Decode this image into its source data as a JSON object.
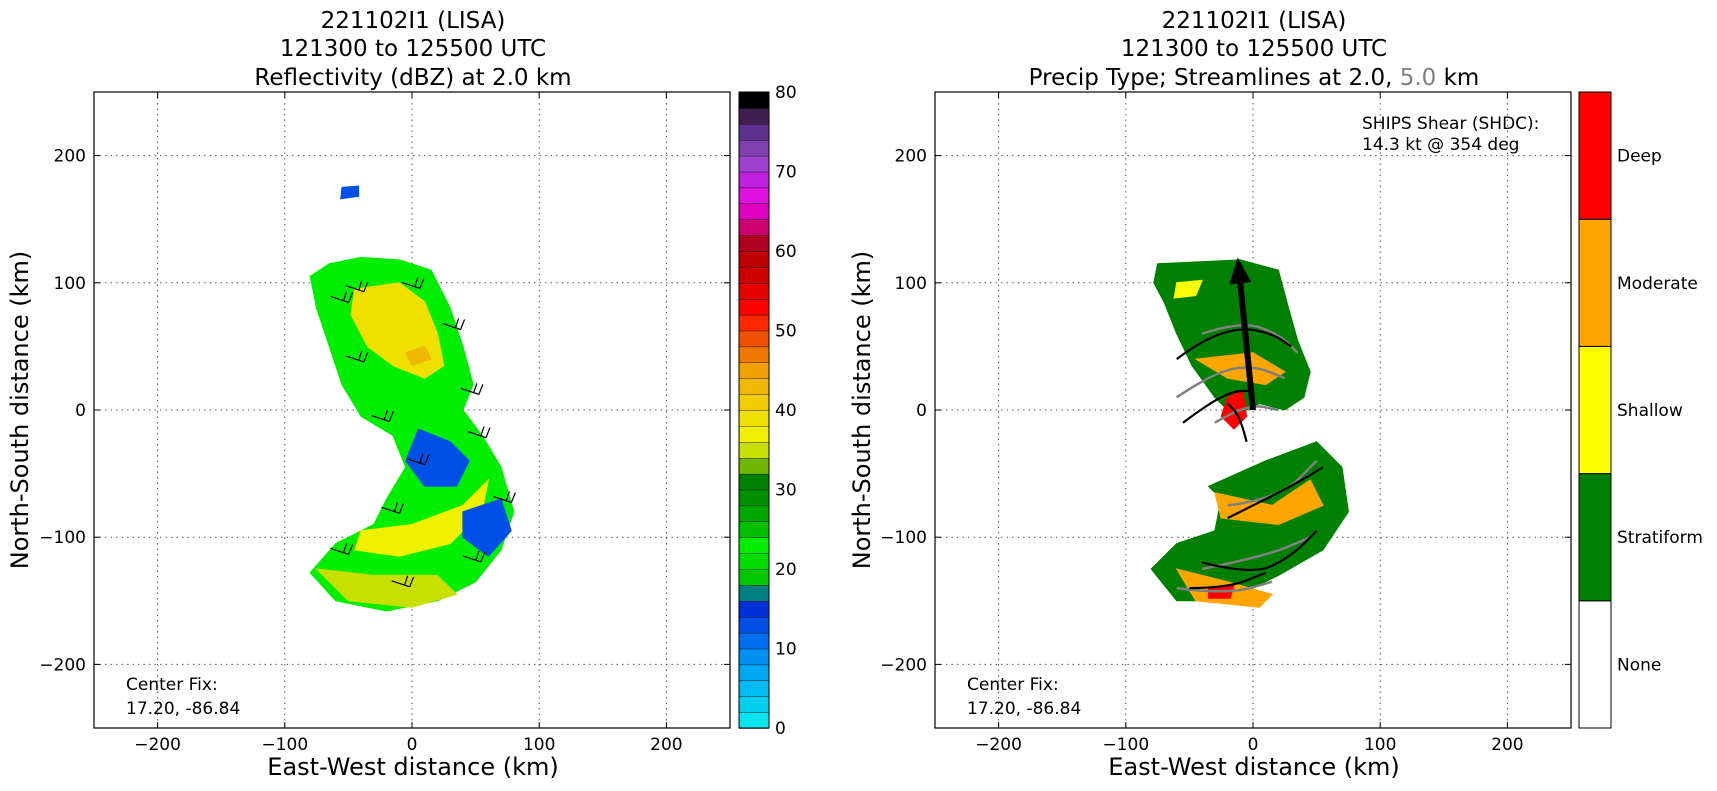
{
  "chart_data": [
    {
      "type": "heatmap",
      "title_lines": [
        "221102I1 (LISA)",
        "121300 to 125500 UTC",
        "Reflectivity (dBZ) at 2.0 km"
      ],
      "xlabel": "East-West distance (km)",
      "ylabel": "North-South distance (km)",
      "xlim": [
        -250,
        250
      ],
      "ylim": [
        -250,
        250
      ],
      "xticks": [
        -200,
        -100,
        0,
        100,
        200
      ],
      "yticks": [
        -200,
        -100,
        0,
        100,
        200
      ],
      "xtick_labels": [
        "−200",
        "−100",
        "0",
        "100",
        "200"
      ],
      "ytick_labels": [
        "−200",
        "−100",
        "0",
        "100",
        "200"
      ],
      "grid": true,
      "annotation_lines": [
        "Center Fix:",
        "17.20, -86.84"
      ],
      "colorbar": {
        "label": "dBZ",
        "vmin": 0,
        "vmax": 80,
        "ticks": [
          0,
          10,
          20,
          30,
          40,
          50,
          60,
          70,
          80
        ],
        "colors": [
          "#00e5ee",
          "#00d0f0",
          "#00bcf2",
          "#00a8f4",
          "#0090f2",
          "#0070f0",
          "#0050e8",
          "#0030d8",
          "#008080",
          "#00c800",
          "#00dd00",
          "#00ee00",
          "#00c000",
          "#00a800",
          "#009000",
          "#008000",
          "#70b800",
          "#c8e000",
          "#f0f000",
          "#f0e000",
          "#f0cc00",
          "#f0b800",
          "#f0a000",
          "#f07800",
          "#f05000",
          "#ff2800",
          "#ff0000",
          "#e80000",
          "#d00000",
          "#c00000",
          "#b00020",
          "#d00070",
          "#e000c0",
          "#e010e0",
          "#c020e0",
          "#a040d0",
          "#8040b0",
          "#603090",
          "#401e50",
          "#000000"
        ]
      },
      "wind_barbs": true,
      "region_outline": [
        [
          -65,
          115
        ],
        [
          -40,
          120
        ],
        [
          -10,
          118
        ],
        [
          15,
          110
        ],
        [
          30,
          80
        ],
        [
          40,
          50
        ],
        [
          48,
          20
        ],
        [
          40,
          0
        ],
        [
          55,
          -20
        ],
        [
          70,
          -45
        ],
        [
          80,
          -80
        ],
        [
          70,
          -110
        ],
        [
          50,
          -135
        ],
        [
          20,
          -150
        ],
        [
          -20,
          -158
        ],
        [
          -60,
          -150
        ],
        [
          -80,
          -128
        ],
        [
          -60,
          -105
        ],
        [
          -30,
          -90
        ],
        [
          -20,
          -70
        ],
        [
          -5,
          -45
        ],
        [
          -15,
          -20
        ],
        [
          -40,
          -5
        ],
        [
          -55,
          20
        ],
        [
          -65,
          50
        ],
        [
          -75,
          80
        ],
        [
          -80,
          105
        ]
      ],
      "intensity_zones": [
        {
          "dbz": 22,
          "points": [
            [
              -65,
              115
            ],
            [
              -40,
              120
            ],
            [
              -10,
              118
            ],
            [
              15,
              110
            ],
            [
              30,
              80
            ],
            [
              40,
              50
            ],
            [
              48,
              20
            ],
            [
              40,
              0
            ],
            [
              55,
              -20
            ],
            [
              70,
              -45
            ],
            [
              80,
              -80
            ],
            [
              70,
              -110
            ],
            [
              50,
              -135
            ],
            [
              20,
              -150
            ],
            [
              -20,
              -158
            ],
            [
              -60,
              -150
            ],
            [
              -80,
              -128
            ],
            [
              -60,
              -105
            ],
            [
              -30,
              -90
            ],
            [
              -20,
              -70
            ],
            [
              -5,
              -45
            ],
            [
              -15,
              -20
            ],
            [
              -40,
              -5
            ],
            [
              -55,
              20
            ],
            [
              -65,
              50
            ],
            [
              -75,
              80
            ],
            [
              -80,
              105
            ]
          ]
        },
        {
          "dbz": 38,
          "points": [
            [
              -45,
              95
            ],
            [
              -10,
              100
            ],
            [
              10,
              85
            ],
            [
              20,
              60
            ],
            [
              25,
              35
            ],
            [
              10,
              25
            ],
            [
              -15,
              35
            ],
            [
              -35,
              50
            ],
            [
              -48,
              75
            ]
          ]
        },
        {
          "dbz": 36,
          "points": [
            [
              -40,
              -95
            ],
            [
              0,
              -90
            ],
            [
              40,
              -75
            ],
            [
              60,
              -55
            ],
            [
              55,
              -80
            ],
            [
              30,
              -105
            ],
            [
              -10,
              -115
            ],
            [
              -45,
              -110
            ]
          ]
        },
        {
          "dbz": 34,
          "points": [
            [
              -75,
              -125
            ],
            [
              -30,
              -130
            ],
            [
              20,
              -130
            ],
            [
              35,
              -145
            ],
            [
              0,
              -155
            ],
            [
              -50,
              -150
            ]
          ]
        },
        {
          "dbz": 12,
          "points": [
            [
              5,
              -15
            ],
            [
              30,
              -25
            ],
            [
              45,
              -40
            ],
            [
              35,
              -60
            ],
            [
              10,
              -60
            ],
            [
              -5,
              -40
            ]
          ]
        },
        {
          "dbz": 12,
          "points": [
            [
              40,
              -80
            ],
            [
              70,
              -70
            ],
            [
              78,
              -95
            ],
            [
              60,
              -115
            ],
            [
              40,
              -100
            ]
          ]
        },
        {
          "dbz": 12,
          "points": [
            [
              -55,
              175
            ],
            [
              -42,
              176
            ],
            [
              -42,
              168
            ],
            [
              -56,
              166
            ]
          ]
        },
        {
          "dbz": 42,
          "points": [
            [
              -5,
              45
            ],
            [
              10,
              50
            ],
            [
              15,
              40
            ],
            [
              0,
              35
            ]
          ]
        }
      ]
    },
    {
      "type": "heatmap",
      "title_lines": [
        "221102I1 (LISA)",
        "121300 to 125500 UTC"
      ],
      "title_line3": {
        "before": "Precip Type; Streamlines at 2.0, ",
        "highlight": "5.0",
        "after": " km"
      },
      "highlight_color": "#808080",
      "xlabel": "East-West distance (km)",
      "ylabel": "North-South distance (km)",
      "xlim": [
        -250,
        250
      ],
      "ylim": [
        -250,
        250
      ],
      "xticks": [
        -200,
        -100,
        0,
        100,
        200
      ],
      "yticks": [
        -200,
        -100,
        0,
        100,
        200
      ],
      "xtick_labels": [
        "−200",
        "−100",
        "0",
        "100",
        "200"
      ],
      "ytick_labels": [
        "−200",
        "−100",
        "0",
        "100",
        "200"
      ],
      "grid": true,
      "annotation_lines": [
        "Center Fix:",
        "17.20, -86.84"
      ],
      "shear_lines": [
        "SHIPS Shear (SHDC):",
        "14.3 kt @ 354 deg"
      ],
      "shear_vector": {
        "from": [
          0,
          0
        ],
        "to": [
          -12,
          120
        ]
      },
      "categories": [
        "None",
        "Stratiform",
        "Shallow",
        "Moderate",
        "Deep"
      ],
      "category_colors": [
        "#ffffff",
        "#008000",
        "#ffff00",
        "#ffa500",
        "#ff0000"
      ],
      "regions": [
        {
          "category": "Stratiform",
          "points": [
            [
              -75,
              115
            ],
            [
              -10,
              118
            ],
            [
              20,
              110
            ],
            [
              28,
              80
            ],
            [
              35,
              55
            ],
            [
              45,
              30
            ],
            [
              40,
              10
            ],
            [
              25,
              0
            ],
            [
              5,
              5
            ],
            [
              -15,
              -5
            ],
            [
              -30,
              10
            ],
            [
              -48,
              35
            ],
            [
              -60,
              60
            ],
            [
              -70,
              85
            ],
            [
              -78,
              100
            ]
          ]
        },
        {
          "category": "Stratiform",
          "points": [
            [
              -35,
              -60
            ],
            [
              10,
              -40
            ],
            [
              50,
              -25
            ],
            [
              70,
              -45
            ],
            [
              75,
              -80
            ],
            [
              55,
              -110
            ],
            [
              20,
              -130
            ],
            [
              -20,
              -150
            ],
            [
              -60,
              -150
            ],
            [
              -80,
              -125
            ],
            [
              -60,
              -105
            ],
            [
              -30,
              -95
            ],
            [
              -25,
              -70
            ]
          ]
        },
        {
          "category": "Shallow",
          "points": [
            [
              -60,
              100
            ],
            [
              -40,
              102
            ],
            [
              -45,
              90
            ],
            [
              -62,
              88
            ]
          ]
        },
        {
          "category": "Moderate",
          "points": [
            [
              -45,
              40
            ],
            [
              0,
              45
            ],
            [
              25,
              30
            ],
            [
              10,
              20
            ],
            [
              -20,
              25
            ]
          ]
        },
        {
          "category": "Moderate",
          "points": [
            [
              -30,
              -65
            ],
            [
              15,
              -75
            ],
            [
              45,
              -55
            ],
            [
              55,
              -75
            ],
            [
              20,
              -90
            ],
            [
              -25,
              -85
            ]
          ]
        },
        {
          "category": "Moderate",
          "points": [
            [
              -60,
              -125
            ],
            [
              -20,
              -135
            ],
            [
              15,
              -145
            ],
            [
              5,
              -155
            ],
            [
              -45,
              -150
            ]
          ]
        },
        {
          "category": "Deep",
          "points": [
            [
              -20,
              10
            ],
            [
              -8,
              15
            ],
            [
              -5,
              -5
            ],
            [
              -15,
              -15
            ],
            [
              -25,
              -5
            ]
          ]
        },
        {
          "category": "Deep",
          "points": [
            [
              -35,
              -140
            ],
            [
              -15,
              -138
            ],
            [
              -18,
              -148
            ],
            [
              -35,
              -148
            ]
          ]
        }
      ],
      "streamlines_2km": [
        [
          [
            -60,
            40
          ],
          [
            -40,
            55
          ],
          [
            -10,
            65
          ],
          [
            15,
            60
          ],
          [
            30,
            50
          ]
        ],
        [
          [
            -55,
            -10
          ],
          [
            -35,
            5
          ],
          [
            -15,
            15
          ],
          [
            0,
            15
          ]
        ],
        [
          [
            -5,
            -25
          ],
          [
            -10,
            -5
          ],
          [
            -20,
            5
          ]
        ],
        [
          [
            -20,
            -85
          ],
          [
            0,
            -75
          ],
          [
            30,
            -60
          ],
          [
            55,
            -45
          ]
        ],
        [
          [
            -40,
            -120
          ],
          [
            0,
            -130
          ],
          [
            30,
            -115
          ],
          [
            50,
            -95
          ]
        ],
        [
          [
            -50,
            -140
          ],
          [
            -20,
            -140
          ],
          [
            10,
            -128
          ]
        ]
      ],
      "streamlines_5km": [
        [
          [
            -40,
            60
          ],
          [
            -10,
            70
          ],
          [
            20,
            60
          ],
          [
            35,
            45
          ]
        ],
        [
          [
            -60,
            10
          ],
          [
            -30,
            30
          ],
          [
            0,
            35
          ],
          [
            25,
            25
          ]
        ],
        [
          [
            -30,
            -10
          ],
          [
            -5,
            5
          ],
          [
            20,
            0
          ]
        ],
        [
          [
            -20,
            -75
          ],
          [
            20,
            -70
          ],
          [
            50,
            -40
          ]
        ],
        [
          [
            -40,
            -125
          ],
          [
            10,
            -115
          ],
          [
            45,
            -100
          ]
        ],
        [
          [
            -60,
            -140
          ],
          [
            -20,
            -145
          ],
          [
            15,
            -135
          ]
        ]
      ]
    }
  ]
}
